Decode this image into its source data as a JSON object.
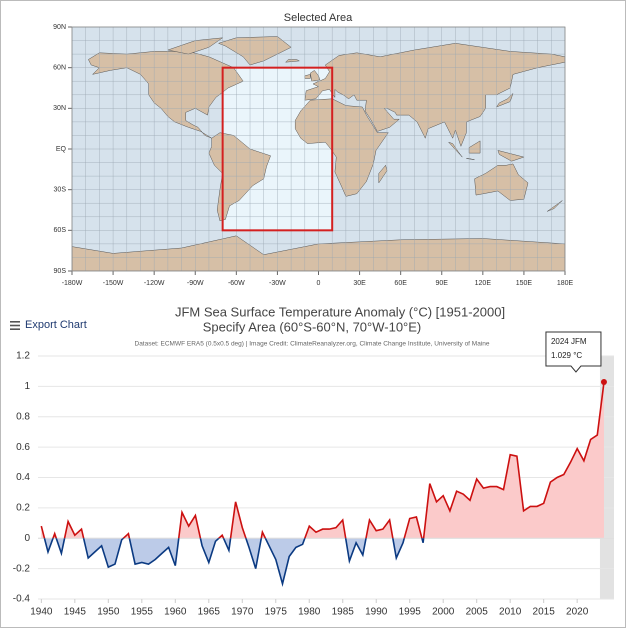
{
  "map": {
    "title": "Selected Area",
    "xlim": [
      -180,
      180
    ],
    "ylim": [
      -90,
      90
    ],
    "xticks": [
      {
        "value": -180,
        "label": "-180W"
      },
      {
        "value": -150,
        "label": "-150W"
      },
      {
        "value": -120,
        "label": "-120W"
      },
      {
        "value": -90,
        "label": "-90W"
      },
      {
        "value": -60,
        "label": "-60W"
      },
      {
        "value": -30,
        "label": "-30W"
      },
      0,
      {
        "value": 30,
        "label": "30E"
      },
      {
        "value": 60,
        "label": "60E"
      },
      {
        "value": 90,
        "label": "90E"
      },
      {
        "value": 120,
        "label": "120E"
      },
      {
        "value": 150,
        "label": "150E"
      },
      {
        "value": 180,
        "label": "180E"
      }
    ],
    "yticks": [
      {
        "value": 90,
        "label": "90N"
      },
      {
        "value": 60,
        "label": "60N"
      },
      {
        "value": 30,
        "label": "30N"
      },
      {
        "value": 0,
        "label": "EQ"
      },
      {
        "value": -30,
        "label": "30S"
      },
      {
        "value": -60,
        "label": "60S"
      },
      {
        "value": -90,
        "label": "90S"
      }
    ],
    "selection": {
      "lon": [
        -70,
        10
      ],
      "lat": [
        -60,
        60
      ],
      "color": "#d42020"
    }
  },
  "export_label": "Export Chart",
  "chart_data": {
    "type": "line",
    "title": "JFM Sea Surface Temperature Anomaly (°C) [1951-2000]",
    "subtitle": "Specify Area (60°S-60°N, 70°W-10°E)",
    "credit": "Dataset: ECMWF ERA5 (0.5x0.5 deg) | Image Credit: ClimateReanalyzer.org, Climate Change Institute, University of Maine",
    "x": [
      1940,
      1941,
      1942,
      1943,
      1944,
      1945,
      1946,
      1947,
      1948,
      1949,
      1950,
      1951,
      1952,
      1953,
      1954,
      1955,
      1956,
      1957,
      1958,
      1959,
      1960,
      1961,
      1962,
      1963,
      1964,
      1965,
      1966,
      1967,
      1968,
      1969,
      1970,
      1971,
      1972,
      1973,
      1974,
      1975,
      1976,
      1977,
      1978,
      1979,
      1980,
      1981,
      1982,
      1983,
      1984,
      1985,
      1986,
      1987,
      1988,
      1989,
      1990,
      1991,
      1992,
      1993,
      1994,
      1995,
      1996,
      1997,
      1998,
      1999,
      2000,
      2001,
      2002,
      2003,
      2004,
      2005,
      2006,
      2007,
      2008,
      2009,
      2010,
      2011,
      2012,
      2013,
      2014,
      2015,
      2016,
      2017,
      2018,
      2019,
      2020,
      2021,
      2022,
      2023,
      2024
    ],
    "values": [
      0.08,
      -0.09,
      0.03,
      -0.1,
      0.11,
      0.02,
      0.06,
      -0.13,
      -0.09,
      -0.05,
      -0.19,
      -0.17,
      -0.01,
      0.03,
      -0.17,
      -0.16,
      -0.17,
      -0.14,
      -0.1,
      -0.06,
      -0.18,
      0.17,
      0.08,
      0.15,
      -0.05,
      -0.16,
      -0.02,
      0.02,
      -0.08,
      0.24,
      0.07,
      -0.06,
      -0.2,
      0.04,
      -0.05,
      -0.14,
      -0.3,
      -0.12,
      -0.06,
      -0.04,
      0.08,
      0.04,
      0.06,
      0.06,
      0.07,
      0.12,
      -0.15,
      -0.03,
      -0.11,
      0.12,
      0.05,
      0.06,
      0.12,
      -0.13,
      -0.03,
      0.13,
      0.14,
      -0.03,
      0.36,
      0.24,
      0.28,
      0.18,
      0.31,
      0.29,
      0.25,
      0.39,
      0.33,
      0.34,
      0.34,
      0.32,
      0.55,
      0.54,
      0.18,
      0.21,
      0.21,
      0.23,
      0.37,
      0.4,
      0.42,
      0.5,
      0.59,
      0.51,
      0.65,
      0.68,
      1.029
    ],
    "colors": {
      "above": "#cc1010",
      "above_fill": "#fbcaca",
      "below": "#0b3a82",
      "below_fill": "#bccbe8"
    },
    "xlim": [
      1939.5,
      2025.5
    ],
    "ylim": [
      -0.4,
      1.2
    ],
    "xticks": [
      1940,
      1945,
      1950,
      1955,
      1960,
      1965,
      1970,
      1975,
      1980,
      1985,
      1990,
      1995,
      2000,
      2005,
      2010,
      2015,
      2020
    ],
    "yticks": [
      1.2,
      1,
      0.8,
      0.6,
      0.4,
      0.2,
      0,
      -0.2,
      -0.4
    ],
    "grid": true,
    "annotation": {
      "x": 2024,
      "label": "2024 JFM",
      "value": 1.029,
      "value_label": "1.029 °C"
    }
  }
}
